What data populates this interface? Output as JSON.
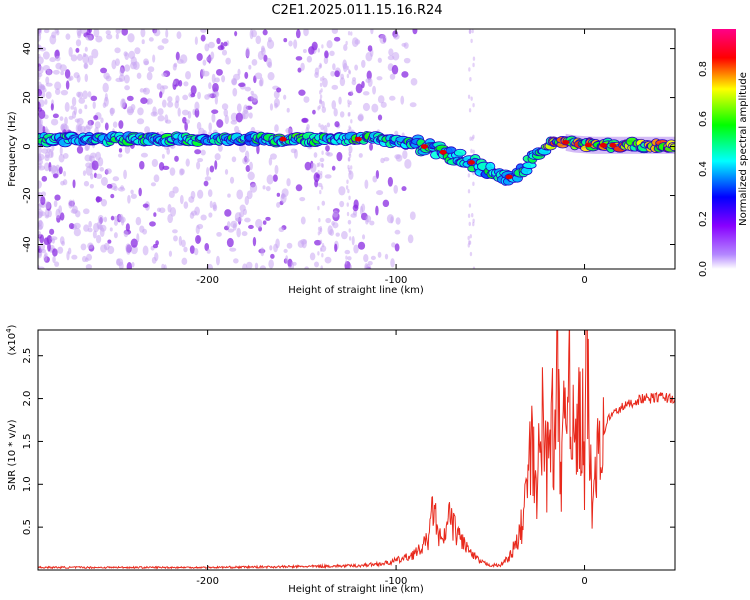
{
  "figure": {
    "title": "C2E1.2025.011.15.16.R24"
  },
  "chart_data": [
    {
      "type": "heatmap",
      "xlabel": "Height of straight line (km)",
      "ylabel": "Frequency (Hz)",
      "xlim": [
        -290,
        48
      ],
      "ylim": [
        -50,
        48
      ],
      "xticks": [
        "-200",
        "-100",
        "0"
      ],
      "xtick_values": [
        -200,
        -100,
        0
      ],
      "yticks": [
        "40",
        "20",
        "0",
        "-20",
        "-40"
      ],
      "ytick_values": [
        40,
        20,
        0,
        -20,
        -40
      ],
      "grid": false,
      "colorbar": {
        "label": "Normalized spectral amplitude",
        "ticks": [
          "0.0",
          "0.2",
          "0.4",
          "0.6",
          "0.8"
        ],
        "tick_values": [
          0,
          0.2,
          0.4,
          0.6,
          0.8
        ],
        "range": [
          0,
          0.96
        ],
        "colors": [
          "#ffffff",
          "#8800ff",
          "#0000ff",
          "#00ffff",
          "#00ff00",
          "#ffff00",
          "#ff0000",
          "#ff00aa"
        ]
      },
      "ridge": {
        "x": [
          -290,
          -200,
          -150,
          -110,
          -95,
          -80,
          -65,
          -55,
          -45,
          -38,
          -30,
          -22,
          -18,
          -12,
          -5,
          5,
          20,
          48
        ],
        "y": [
          3,
          3,
          3,
          3,
          2,
          -1,
          -5,
          -8,
          -11,
          -13,
          -7,
          -2,
          1,
          2,
          1,
          0.5,
          0.5,
          0.5
        ]
      }
    },
    {
      "type": "line",
      "xlabel": "Height of straight line (km)",
      "ylabel": "SNR (10 * v/v)",
      "yscale_label": "(x10",
      "yscale_exp": "4",
      "yscale_close": ")",
      "xlim": [
        -290,
        48
      ],
      "ylim": [
        0,
        28000
      ],
      "xticks": [
        "-200",
        "-100",
        "0"
      ],
      "xtick_values": [
        -200,
        -100,
        0
      ],
      "yticks": [
        "0.5",
        "1.0",
        "1.5",
        "2.0",
        "2.5"
      ],
      "ytick_values": [
        5000,
        10000,
        15000,
        20000,
        25000
      ],
      "grid": false,
      "series": [
        {
          "color": "#e8291c",
          "x": [
            -290,
            -200,
            -150,
            -120,
            -105,
            -95,
            -88,
            -83,
            -80,
            -78,
            -75,
            -72,
            -68,
            -65,
            -60,
            -55,
            -50,
            -45,
            -40,
            -36,
            -34,
            -32,
            -30,
            -28,
            -26,
            -24,
            -22,
            -20,
            -18,
            -16,
            -14,
            -13,
            -12,
            -10,
            -8,
            -6,
            -4,
            -3,
            -2,
            -1,
            0,
            1,
            2,
            3,
            4,
            6,
            8,
            10,
            12,
            15,
            20,
            25,
            30,
            35,
            40,
            48
          ],
          "y": [
            300,
            300,
            400,
            500,
            800,
            1400,
            2200,
            3500,
            7800,
            4200,
            3000,
            6200,
            4400,
            3500,
            1800,
            900,
            600,
            500,
            1500,
            3000,
            4500,
            7000,
            11000,
            14000,
            9500,
            12500,
            18000,
            11500,
            20500,
            12500,
            26500,
            15000,
            11000,
            19500,
            26000,
            15000,
            14000,
            22000,
            13500,
            17500,
            9000,
            28000,
            19000,
            14000,
            5500,
            14500,
            17000,
            15500,
            17500,
            18200,
            19000,
            19500,
            20000,
            20000,
            20200,
            20000
          ]
        }
      ]
    }
  ]
}
